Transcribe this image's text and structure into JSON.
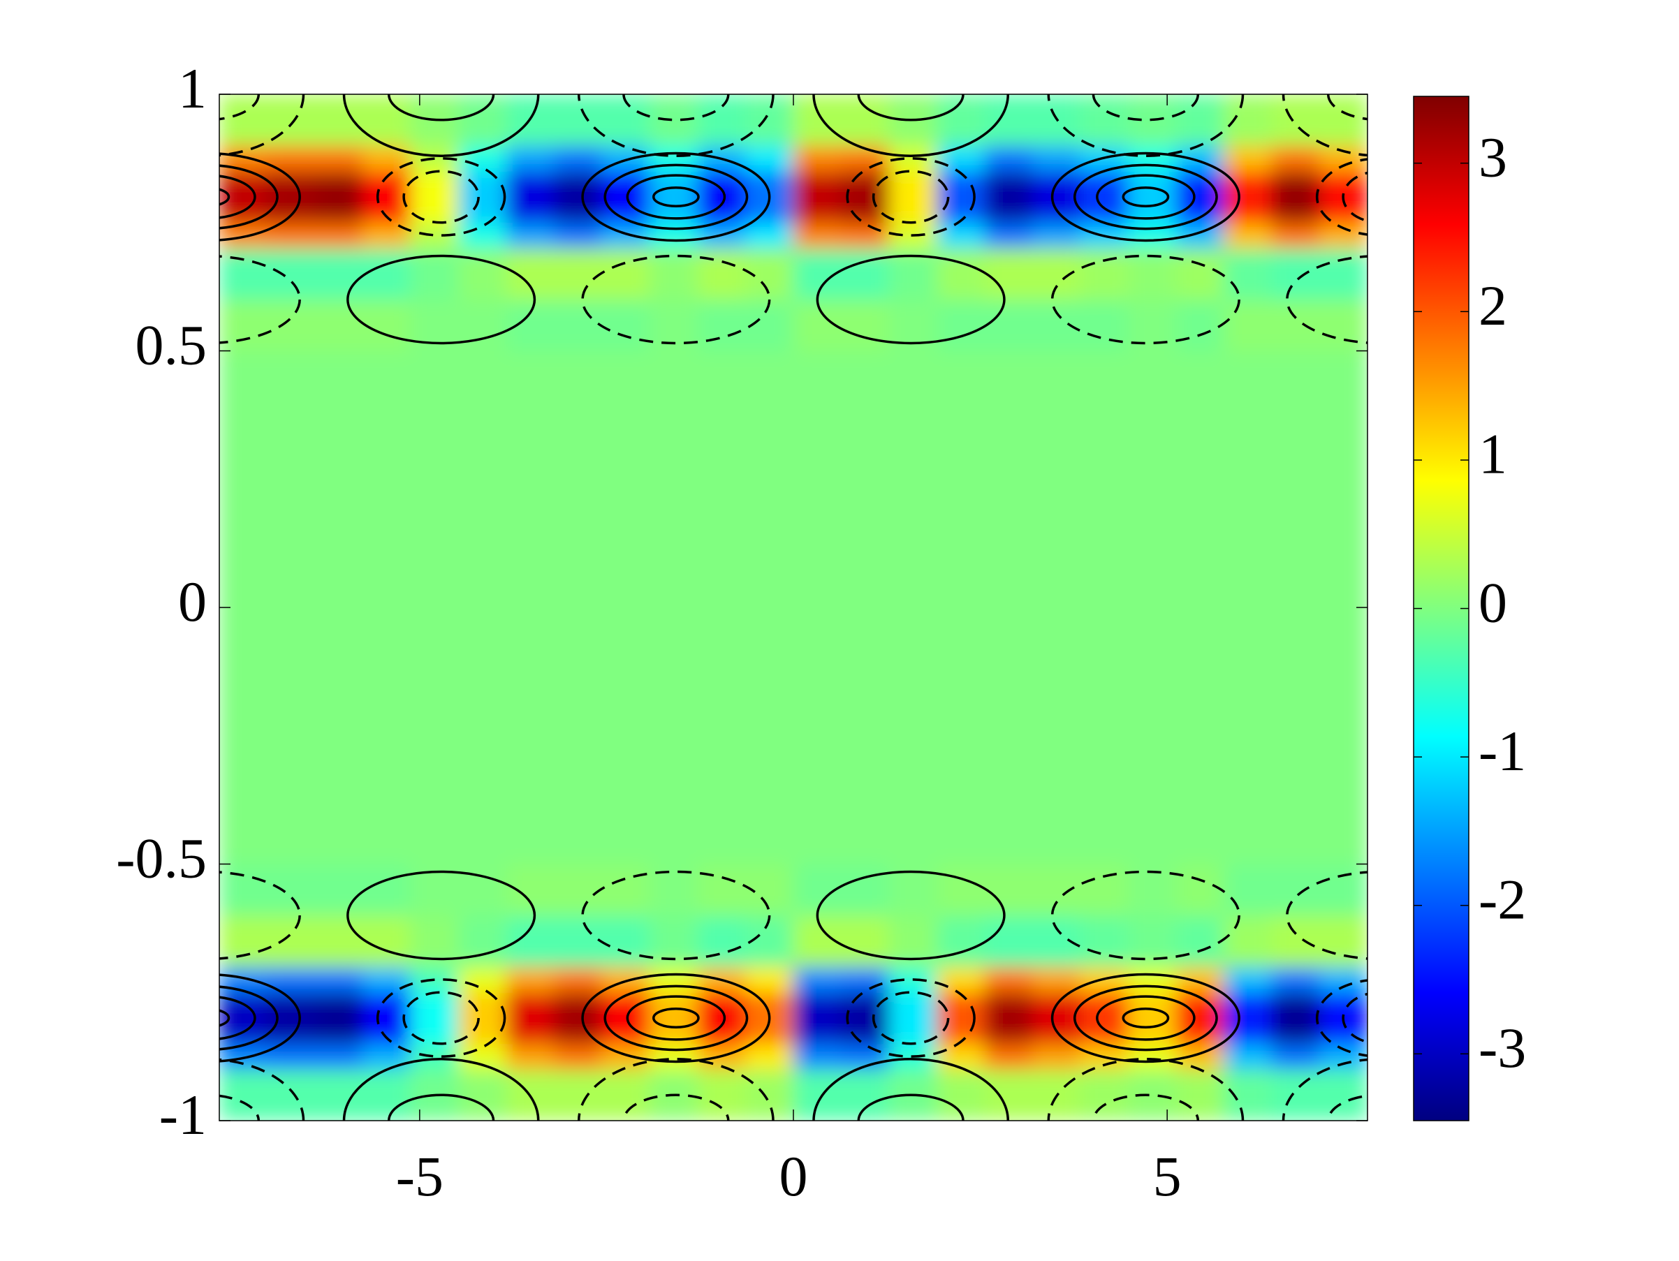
{
  "chart_data": {
    "type": "heatmap",
    "colormap": "jet",
    "x": [
      -7.68,
      -7.04,
      -6.4,
      -5.76,
      -5.12,
      -4.48,
      -3.84,
      -3.2,
      -2.56,
      -1.92,
      -1.28,
      -0.64,
      0,
      0.64,
      1.28,
      1.92,
      2.56,
      3.2,
      3.84,
      4.48,
      5.12,
      5.76,
      6.4,
      7.04,
      7.68
    ],
    "y": [
      -1,
      -0.9,
      -0.85,
      -0.8,
      -0.75,
      -0.7,
      -0.6,
      -0.5,
      0.5,
      0.6,
      0.7,
      0.75,
      0.8,
      0.85,
      0.9,
      1
    ],
    "z": [
      [
        -0.3,
        -0.3,
        -0.3,
        -0.3,
        -0.1,
        0.1,
        0.3,
        0.3,
        0.3,
        0.1,
        0.3,
        0.2,
        -0.3,
        -0.3,
        -0.1,
        0.2,
        0.3,
        0.3,
        0.2,
        0.1,
        0.2,
        -0.2,
        -0.3,
        -0.3
      ],
      [
        -1.7,
        -1.8,
        -1.8,
        -1.4,
        -0.4,
        0.7,
        1.5,
        1.8,
        1.4,
        0.7,
        1.4,
        1.0,
        -1.7,
        -1.8,
        -0.6,
        1.1,
        1.8,
        1.5,
        1.2,
        0.7,
        1.3,
        -1.3,
        -1.8,
        -1.4
      ],
      [
        -3.0,
        -3.2,
        -3.3,
        -2.6,
        -0.8,
        1.2,
        2.8,
        3.2,
        2.6,
        1.3,
        2.6,
        1.8,
        -3.0,
        -3.2,
        -1.0,
        2.0,
        3.2,
        2.8,
        2.2,
        1.2,
        2.4,
        -2.4,
        -3.3,
        -2.5
      ],
      [
        -3.0,
        -3.2,
        -3.3,
        -2.6,
        -0.8,
        1.2,
        2.8,
        3.2,
        2.6,
        1.3,
        2.6,
        1.8,
        -3.0,
        -3.2,
        -1.0,
        2.0,
        3.2,
        2.8,
        2.2,
        1.2,
        2.4,
        -2.4,
        -3.3,
        -2.5
      ],
      [
        -1.7,
        -1.8,
        -1.8,
        -1.4,
        -0.4,
        0.7,
        1.5,
        1.8,
        1.4,
        0.7,
        1.4,
        1.0,
        -1.7,
        -1.8,
        -0.6,
        1.1,
        1.8,
        1.5,
        1.2,
        0.7,
        1.3,
        -1.3,
        -1.8,
        -1.4
      ],
      [
        0.3,
        0.3,
        0.3,
        0.3,
        0.1,
        -0.1,
        -0.3,
        -0.3,
        -0.3,
        -0.1,
        -0.3,
        -0.2,
        0.3,
        0.3,
        0.1,
        -0.2,
        -0.3,
        -0.3,
        -0.2,
        -0.1,
        -0.2,
        0.2,
        0.3,
        0.3
      ],
      [
        -0.1,
        -0.1,
        -0.1,
        -0.1,
        0,
        0,
        0.1,
        0.1,
        0.1,
        0,
        0.1,
        0.1,
        -0.1,
        -0.1,
        0,
        0.1,
        0.1,
        0.1,
        0.1,
        0,
        0.1,
        -0.1,
        -0.1,
        -0.1
      ],
      [
        0,
        0,
        0,
        0,
        0,
        0,
        0,
        0,
        0,
        0,
        0,
        0,
        0,
        0,
        0,
        0,
        0,
        0,
        0,
        0,
        0,
        0,
        0,
        0
      ],
      [
        0.1,
        0.1,
        0.1,
        0.1,
        0,
        0,
        -0.1,
        -0.1,
        -0.1,
        0,
        -0.1,
        -0.1,
        0.1,
        0.1,
        0,
        -0.1,
        -0.1,
        -0.1,
        -0.1,
        0,
        -0.1,
        0.1,
        0.1,
        0.1
      ],
      [
        -0.3,
        -0.3,
        -0.3,
        -0.3,
        -0.1,
        0.1,
        0.3,
        0.3,
        0.3,
        0.1,
        0.3,
        0.2,
        -0.3,
        -0.3,
        -0.1,
        0.2,
        0.3,
        0.3,
        0.2,
        0.1,
        0.2,
        -0.2,
        -0.3,
        -0.3
      ],
      [
        1.7,
        1.8,
        1.8,
        1.4,
        0.4,
        -0.7,
        -1.5,
        -1.8,
        -1.4,
        -0.7,
        -1.4,
        -1.0,
        1.7,
        1.8,
        0.6,
        -1.1,
        -1.8,
        -1.5,
        -1.2,
        -0.7,
        -1.3,
        1.3,
        1.8,
        1.4
      ],
      [
        3.0,
        3.2,
        3.3,
        2.6,
        0.8,
        -1.2,
        -2.8,
        -3.2,
        -2.6,
        -1.3,
        -2.6,
        -1.8,
        3.0,
        3.2,
        1.0,
        -2.0,
        -3.2,
        -2.8,
        -2.2,
        -1.2,
        -2.4,
        2.4,
        3.3,
        2.5
      ],
      [
        3.0,
        3.2,
        3.3,
        2.6,
        0.8,
        -1.2,
        -2.8,
        -3.2,
        -2.6,
        -1.3,
        -2.6,
        -1.8,
        3.0,
        3.2,
        1.0,
        -2.0,
        -3.2,
        -2.8,
        -2.2,
        -1.2,
        -2.4,
        2.4,
        3.3,
        2.5
      ],
      [
        1.7,
        1.8,
        1.8,
        1.4,
        0.4,
        -0.7,
        -1.5,
        -1.8,
        -1.4,
        -0.7,
        -1.4,
        -1.0,
        1.7,
        1.8,
        0.6,
        -1.1,
        -1.8,
        -1.5,
        -1.2,
        -0.7,
        -1.3,
        1.3,
        1.8,
        1.4
      ],
      [
        0.3,
        0.3,
        0.3,
        0.3,
        0.1,
        -0.1,
        -0.3,
        -0.3,
        -0.3,
        -0.1,
        -0.3,
        -0.2,
        0.3,
        0.3,
        0.1,
        -0.2,
        -0.3,
        -0.3,
        -0.2,
        -0.1,
        -0.2,
        0.2,
        0.3,
        0.3
      ]
    ],
    "xlim": [
      -7.68,
      7.68
    ],
    "ylim": [
      -1,
      1
    ],
    "xticks": [
      -5,
      0,
      5
    ],
    "yticks": [
      -1,
      -0.5,
      0,
      0.5,
      1
    ],
    "colorbar": {
      "clim": [
        -3.45,
        3.45
      ],
      "ticks": [
        -3,
        -2,
        -1,
        0,
        1,
        2,
        3
      ]
    }
  }
}
